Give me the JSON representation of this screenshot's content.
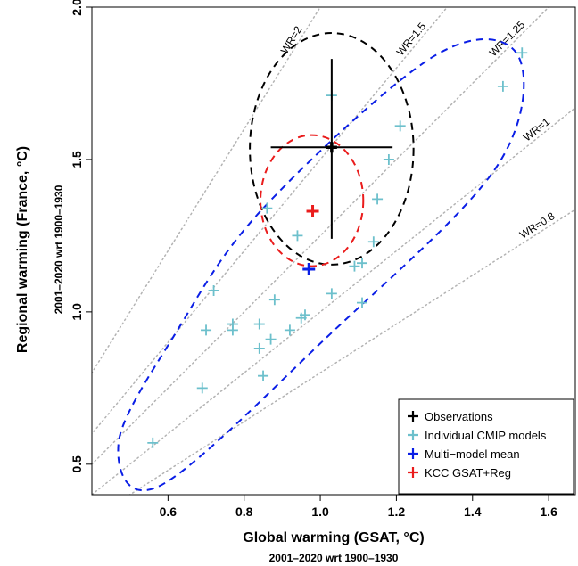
{
  "chart_data": {
    "type": "scatter",
    "xlabel": "Global warming (GSAT, °C)",
    "xsublabel": "2001–2020  wrt  1900–1930",
    "ylabel": "Regional warming (France, °C)",
    "ysublabel": "2001–2020  wrt  1900–1930",
    "xlim": [
      0.4,
      1.67
    ],
    "ylim": [
      0.4,
      2.0
    ],
    "xticks": [
      0.6,
      0.8,
      1.0,
      1.2,
      1.4,
      1.6
    ],
    "yticks": [
      0.5,
      1.0,
      1.5,
      2.0
    ],
    "xtick_labels": [
      "0.6",
      "0.8",
      "1.0",
      "1.2",
      "1.4",
      "1.6"
    ],
    "ytick_labels": [
      "0.5",
      "1.0",
      "1.5",
      "2.0"
    ],
    "warming_ratio_lines": [
      {
        "label": "WR=2",
        "ratio": 2.0,
        "color": "#b3b3b3"
      },
      {
        "label": "WR=1.5",
        "ratio": 1.5,
        "color": "#b3b3b3"
      },
      {
        "label": "WR=1.25",
        "ratio": 1.25,
        "color": "#b3b3b3"
      },
      {
        "label": "WR=1",
        "ratio": 1.0,
        "color": "#b3b3b3"
      },
      {
        "label": "WR=0.8",
        "ratio": 0.8,
        "color": "#b3b3b3"
      }
    ],
    "series": [
      {
        "name": "Individual CMIP models",
        "color": "#6dc0cc",
        "points": [
          [
            0.56,
            0.57
          ],
          [
            0.69,
            0.75
          ],
          [
            0.7,
            0.94
          ],
          [
            0.72,
            1.07
          ],
          [
            0.77,
            0.94
          ],
          [
            0.77,
            0.96
          ],
          [
            0.84,
            0.96
          ],
          [
            0.84,
            0.88
          ],
          [
            0.85,
            0.79
          ],
          [
            0.86,
            1.34
          ],
          [
            0.87,
            0.91
          ],
          [
            0.88,
            1.04
          ],
          [
            0.92,
            0.94
          ],
          [
            0.94,
            1.25
          ],
          [
            0.95,
            0.98
          ],
          [
            0.96,
            0.99
          ],
          [
            1.03,
            1.71
          ],
          [
            1.03,
            1.06
          ],
          [
            1.09,
            1.15
          ],
          [
            1.11,
            1.16
          ],
          [
            1.11,
            1.03
          ],
          [
            1.14,
            1.23
          ],
          [
            1.15,
            1.37
          ],
          [
            1.18,
            1.5
          ],
          [
            1.21,
            1.61
          ],
          [
            1.48,
            1.74
          ],
          [
            1.53,
            1.85
          ]
        ]
      },
      {
        "name": "Observations",
        "color": "#000000",
        "points": [
          [
            1.03,
            1.54
          ]
        ],
        "x_error": [
          0.87,
          1.19
        ],
        "y_error": [
          1.24,
          1.83
        ]
      },
      {
        "name": "Multi−model mean",
        "color": "#0a1ee6",
        "points": [
          [
            0.97,
            1.14
          ]
        ]
      },
      {
        "name": "KCC GSAT+Reg",
        "color": "#ea1c1c",
        "points": [
          [
            0.98,
            1.33
          ]
        ]
      }
    ],
    "ellipses": [
      {
        "name": "Observations",
        "color": "#000000",
        "cx": 1.03,
        "cy": 1.535,
        "rx": 0.215,
        "ry": 0.38,
        "angle": 0
      },
      {
        "name": "KCC GSAT+Reg",
        "color": "#ea1c1c",
        "cx": 0.978,
        "cy": 1.365,
        "rx": 0.135,
        "ry": 0.215,
        "angle": 0
      },
      {
        "name": "CMIP models",
        "color": "#0a1ee6",
        "poly": [
          [
            0.85,
            1.34
          ],
          [
            1.3,
            1.84
          ],
          [
            1.52,
            1.84
          ],
          [
            1.46,
            1.47
          ],
          [
            1.02,
            0.92
          ],
          [
            0.58,
            0.43
          ],
          [
            0.47,
            0.57
          ],
          [
            0.62,
            0.93
          ]
        ]
      }
    ],
    "legend": {
      "position": "bottom-right",
      "items": [
        {
          "label": "Observations",
          "color": "#000000"
        },
        {
          "label": "Individual CMIP models",
          "color": "#6dc0cc"
        },
        {
          "label": "Multi−model mean",
          "color": "#0a1ee6"
        },
        {
          "label": "KCC GSAT+Reg",
          "color": "#ea1c1c"
        }
      ]
    }
  }
}
